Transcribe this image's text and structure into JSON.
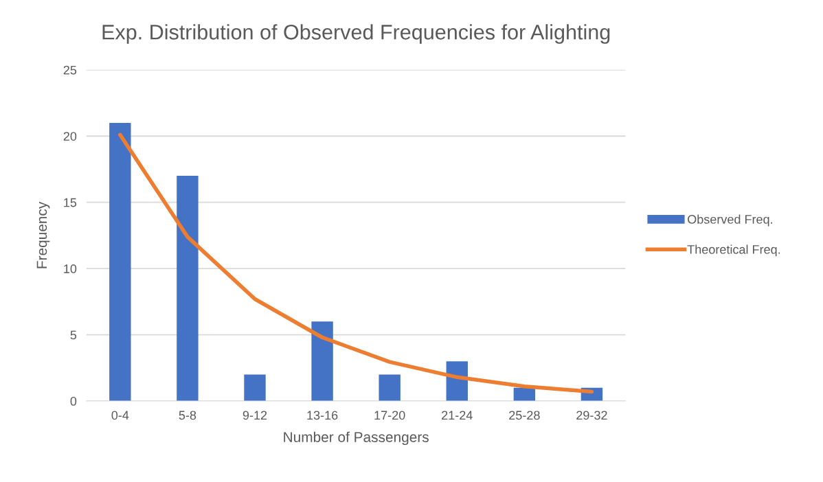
{
  "chart_data": {
    "type": "bar",
    "title": "Exp. Distribution of Observed Frequencies for Alighting",
    "xlabel": "Number of Passengers",
    "ylabel": "Frequency",
    "categories": [
      "0-4",
      "5-8",
      "9-12",
      "13-16",
      "17-20",
      "21-24",
      "25-28",
      "29-32"
    ],
    "series": [
      {
        "name": "Observed Freq.",
        "color": "#4472c4",
        "values": [
          21,
          17,
          2,
          6,
          2,
          3,
          1,
          1
        ]
      },
      {
        "name": "Theoretical Freq.",
        "type": "line",
        "color": "#ed7d31",
        "values": [
          20.1,
          12.4,
          7.7,
          4.8,
          2.95,
          1.8,
          1.1,
          0.7
        ]
      }
    ],
    "ylim": [
      0,
      25
    ],
    "yticks": [
      0,
      5,
      10,
      15,
      20,
      25
    ],
    "grid": "y",
    "legend": "right",
    "marker": "none",
    "line_style": "solid"
  }
}
